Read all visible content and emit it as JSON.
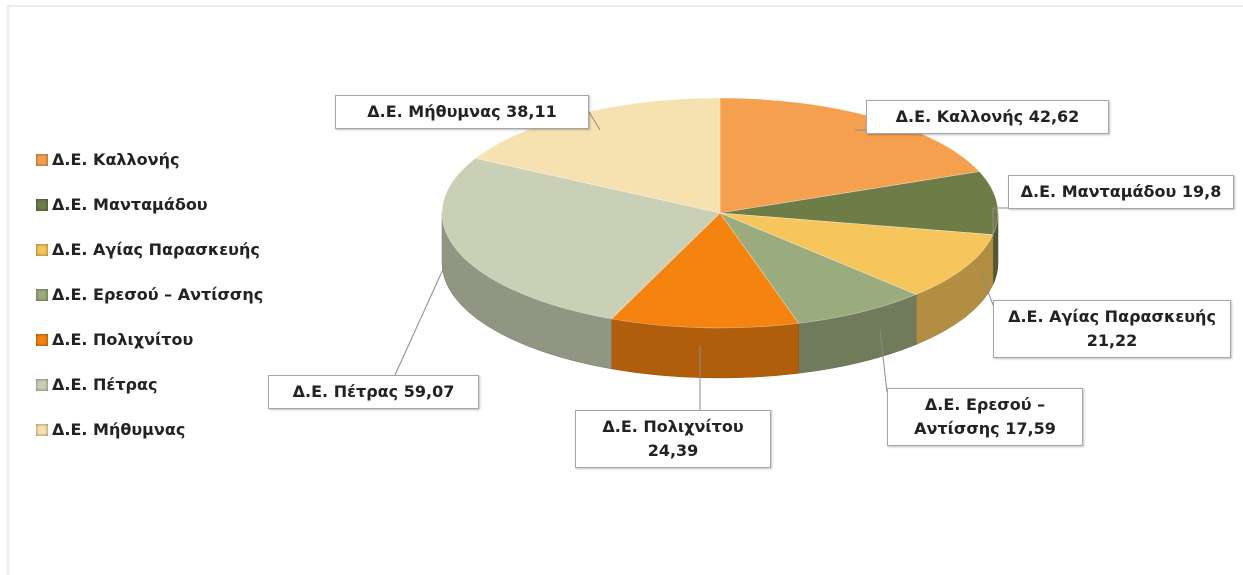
{
  "chart_data": {
    "type": "pie",
    "categories": [
      "Δ.Ε. Καλλονής",
      "Δ.Ε. Μανταμάδου",
      "Δ.Ε. Αγίας Παρασκευής",
      "Δ.Ε. Ερεσού – Αντίσσης",
      "Δ.Ε. Πολιχνίτου",
      "Δ.Ε. Πέτρας",
      "Δ.Ε. Μήθυμνας"
    ],
    "values": [
      42.62,
      19.8,
      21.22,
      17.59,
      24.39,
      59.07,
      38.11
    ],
    "value_labels": [
      "42,62",
      "19,8",
      "21,22",
      "17,59",
      "24,39",
      "59,07",
      "38,11"
    ],
    "colors": [
      "#f5a04e",
      "#6e7d47",
      "#f6c55b",
      "#9aab7d",
      "#f5830f",
      "#c9d0b5",
      "#f6e2b0"
    ],
    "legend": "left"
  }
}
